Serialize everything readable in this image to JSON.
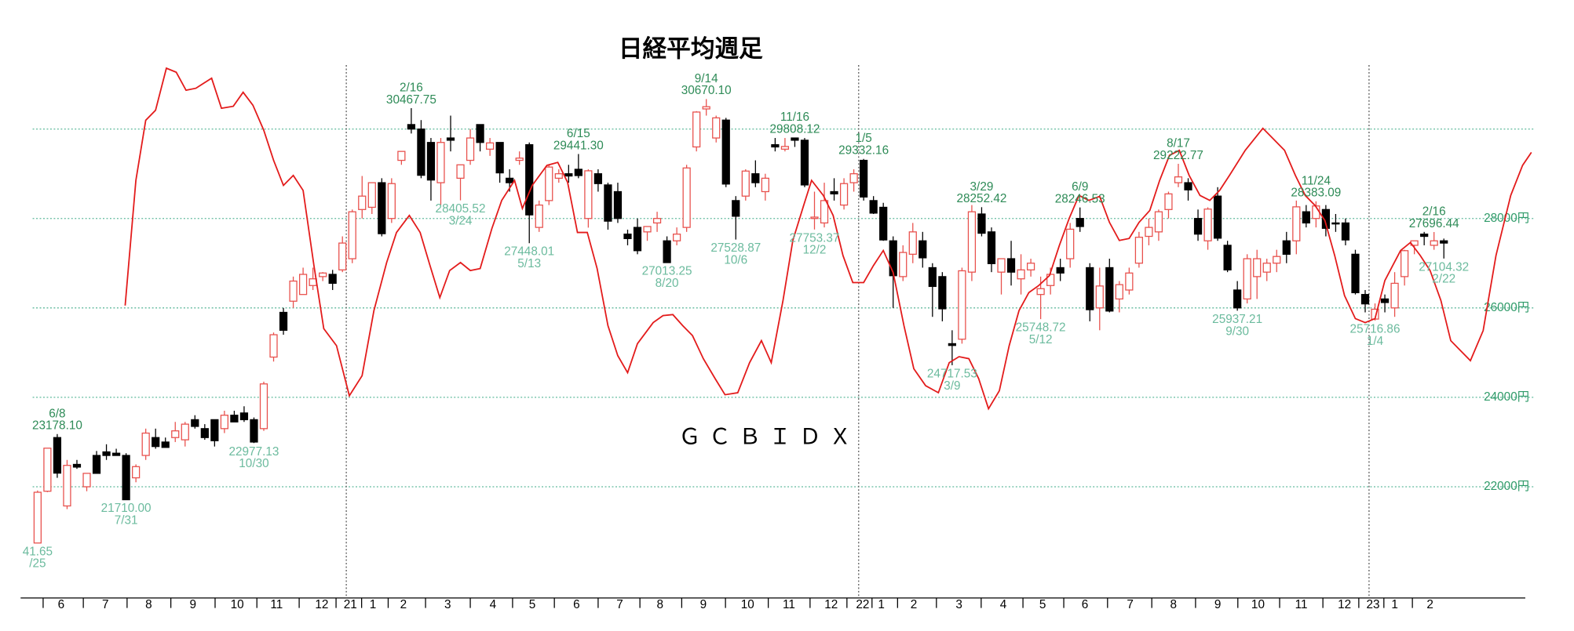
{
  "chart_data": {
    "type": "candlestick",
    "title": "日経平均週足",
    "x": [
      0,
      1,
      2,
      3,
      4,
      5,
      6,
      7,
      8,
      9,
      10,
      11,
      12,
      13,
      14,
      15,
      16,
      17,
      18,
      19,
      20,
      21,
      22,
      23,
      24,
      25,
      26,
      27,
      28,
      29,
      30,
      31,
      32,
      33,
      34,
      35,
      36,
      37,
      38,
      39,
      40,
      41,
      42,
      43,
      44,
      45,
      46,
      47,
      48,
      49,
      50,
      51,
      52,
      53,
      54,
      55,
      56,
      57,
      58,
      59,
      60,
      61,
      62,
      63,
      64,
      65,
      66,
      67,
      68,
      69,
      70,
      71,
      72,
      73,
      74,
      75,
      76,
      77,
      78,
      79,
      80,
      81,
      82,
      83,
      84,
      85,
      86,
      87,
      88,
      89,
      90,
      91,
      92,
      93,
      94,
      95,
      96,
      97,
      98,
      99,
      100,
      101,
      102,
      103,
      104,
      105,
      106,
      107,
      108,
      109,
      110,
      111,
      112,
      113,
      114,
      115,
      116,
      117,
      118,
      119,
      120,
      121,
      122,
      123,
      124,
      125,
      126,
      127,
      128,
      129,
      130,
      131,
      132,
      133,
      134,
      135,
      136,
      137,
      138,
      139,
      140,
      141,
      142,
      143
    ],
    "open": [
      20741.65,
      21900,
      23100,
      21571,
      22500,
      22000,
      22700,
      22780,
      22750,
      22700,
      22200,
      22700,
      23100,
      23000,
      23100,
      23050,
      23500,
      23300,
      23500,
      23300,
      23600,
      23650,
      23500,
      23300,
      24900,
      25900,
      26150,
      26300,
      26500,
      26700,
      26750,
      26850,
      27100,
      28200,
      28250,
      28800,
      28000,
      29300,
      30100,
      30000,
      29700,
      28800,
      29800,
      28900,
      29300,
      30100,
      29550,
      29700,
      28900,
      29300,
      29650,
      27800,
      28400,
      28900,
      29000,
      29100,
      28000,
      29000,
      28750,
      28600,
      27650,
      27800,
      27700,
      27900,
      27500,
      27500,
      27800,
      29600,
      30450,
      29800,
      30200,
      28400,
      28500,
      29000,
      28600,
      29650,
      29550,
      29800,
      29750,
      28000,
      27900,
      28600,
      28300,
      28800,
      29300,
      28400,
      28250,
      27500,
      26700,
      27200,
      27500,
      26900,
      26700,
      25200,
      25300,
      26800,
      28100,
      27700,
      26800,
      27100,
      26650,
      26850,
      26300,
      26500,
      26900,
      27100,
      28000,
      26900,
      26000,
      26900,
      26200,
      26400,
      27000,
      27600,
      27700,
      28200,
      28800,
      28800,
      28000,
      27500,
      28500,
      27400,
      26400,
      26200,
      26700,
      26800,
      27000,
      27500,
      27500,
      28150,
      28000,
      28200,
      27900,
      27900,
      27200,
      26300,
      25750,
      26200,
      26000,
      26700,
      27400,
      27650,
      27400,
      27500
    ],
    "high": [
      21916,
      22863,
      23178.1,
      22600,
      22600,
      22300,
      22800,
      22950,
      22850,
      22750,
      22500,
      23300,
      23300,
      23100,
      23450,
      23450,
      23600,
      23400,
      23500,
      23700,
      23700,
      23800,
      23550,
      24350,
      25450,
      26000,
      26700,
      26900,
      26900,
      26800,
      26850,
      27600,
      28200,
      28950,
      28800,
      28900,
      28900,
      29500,
      30467.75,
      30200,
      29800,
      29800,
      30300,
      29200,
      30000,
      30100,
      29800,
      29700,
      29100,
      29500,
      29700,
      28400,
      29200,
      29100,
      29200,
      29441.3,
      29100,
      29100,
      28800,
      28800,
      27750,
      28000,
      27800,
      28150,
      27600,
      27800,
      29200,
      30400,
      30670.1,
      30300,
      30250,
      28500,
      29100,
      29300,
      29000,
      29800,
      29800,
      29808.12,
      29800,
      28600,
      28800,
      28900,
      28900,
      29100,
      29332.16,
      28500,
      28350,
      27600,
      27400,
      27900,
      27700,
      27000,
      26800,
      25500,
      26900,
      28300,
      28252.42,
      27800,
      27100,
      27500,
      27200,
      27100,
      26700,
      26900,
      27100,
      27900,
      28246.53,
      27000,
      26900,
      27100,
      26600,
      26900,
      27700,
      28000,
      28200,
      28600,
      29222.77,
      28900,
      28200,
      28250,
      28700,
      27500,
      26600,
      27200,
      27300,
      27100,
      27300,
      27700,
      28400,
      28300,
      28383.09,
      28300,
      28100,
      28000,
      27300,
      26400,
      26100,
      26300,
      26800,
      27300,
      27500,
      27700,
      27696.44,
      27550
    ],
    "low": [
      20741.65,
      21880,
      22200,
      21500,
      22400,
      21900,
      22300,
      22600,
      22700,
      21710,
      22100,
      22600,
      22850,
      22880,
      23000,
      22900,
      23300,
      23050,
      22900,
      23200,
      23450,
      23450,
      22977.13,
      23250,
      24800,
      25400,
      26000,
      26300,
      26400,
      26600,
      26400,
      26800,
      27000,
      28000,
      28100,
      27600,
      27900,
      29200,
      29900,
      28900,
      28400,
      28300,
      29500,
      28405.52,
      29200,
      29500,
      29400,
      28800,
      28600,
      29200,
      27448.01,
      27700,
      28300,
      28800,
      28800,
      28900,
      27795,
      28600,
      27750,
      27900,
      27400,
      27200,
      27500,
      27700,
      27013.25,
      27400,
      27700,
      29500,
      30300,
      29700,
      28700,
      27528.87,
      28400,
      28700,
      28400,
      29500,
      29500,
      29600,
      28700,
      27753.37,
      27800,
      28400,
      28200,
      28600,
      28400,
      28100,
      27500,
      26000,
      26600,
      27000,
      26900,
      25800,
      25700,
      24717.53,
      25200,
      26600,
      27600,
      26800,
      26300,
      26500,
      26300,
      26700,
      25748.72,
      26300,
      26600,
      26900,
      27700,
      25700,
      25500,
      25900,
      25900,
      26300,
      26900,
      27400,
      27500,
      28000,
      28700,
      28400,
      27500,
      27300,
      27500,
      26800,
      25937.21,
      26100,
      26200,
      26600,
      26800,
      27000,
      27200,
      27800,
      27800,
      27600,
      27700,
      27400,
      26300,
      25900,
      25716.86,
      25900,
      25800,
      26500,
      27200,
      27400,
      27300,
      27104.32
    ],
    "close": [
      21877,
      22863,
      22305,
      22478,
      22440,
      22300,
      22300,
      22700,
      22700,
      21710,
      22450,
      23200,
      22900,
      22880,
      23250,
      23400,
      23350,
      23100,
      23030,
      23600,
      23450,
      23500,
      23000,
      24300,
      25400,
      25500,
      26600,
      26750,
      26650,
      26780,
      26550,
      27450,
      28150,
      28500,
      28800,
      27660,
      28780,
      29500,
      30000,
      28966,
      28860,
      29700,
      29750,
      29200,
      29800,
      29700,
      29690,
      29020,
      28800,
      29350,
      28080,
      28300,
      29150,
      29000,
      28950,
      28960,
      29066,
      28780,
      27940,
      28000,
      27550,
      27280,
      27820,
      28000,
      27013.25,
      27650,
      29130,
      30380,
      30500,
      30250,
      28770,
      28050,
      29060,
      28800,
      28900,
      29600,
      29610,
      29750,
      28750,
      28030,
      28400,
      28550,
      28780,
      29000,
      28480,
      28120,
      27520,
      26720,
      27240,
      27700,
      27120,
      26480,
      25980,
      25160,
      26830,
      28150,
      27670,
      26990,
      27100,
      26800,
      26850,
      27000,
      26430,
      26750,
      26780,
      27760,
      27820,
      25960,
      26490,
      25930,
      26520,
      26780,
      27580,
      27800,
      28150,
      28550,
      28930,
      28640,
      27650,
      28210,
      27560,
      26850,
      26000,
      27100,
      27100,
      27000,
      27150,
      27200,
      28260,
      27900,
      28280,
      27780,
      27880,
      27520,
      26340,
      26090,
      25970,
      26120,
      26550,
      27280,
      27500,
      27600,
      27500,
      27450
    ],
    "up_color": "#e8504c",
    "down_color": "#000000",
    "overlay": {
      "type": "line",
      "name": "ＧＣＢＩＤＸ",
      "color": "#e31b1b",
      "x": [
        8.9,
        10.0,
        11.0,
        12.0,
        13.1,
        14.1,
        15.1,
        16.1,
        17.7,
        18.7,
        19.9,
        20.9,
        21.9,
        23.0,
        24.0,
        25.0,
        26.0,
        27.0,
        28.1,
        29.1,
        30.4,
        31.7,
        33.0,
        34.2,
        35.5,
        36.5,
        37.8,
        38.9,
        39.9,
        40.9,
        41.9,
        43.0,
        44.0,
        45.0,
        46.2,
        47.2,
        48.5,
        49.3,
        50.3,
        51.8,
        52.9,
        53.9,
        54.9,
        55.9,
        56.9,
        58.0,
        59.0,
        60.0,
        61.0,
        62.6,
        63.6,
        64.6,
        65.6,
        66.6,
        67.7,
        68.9,
        69.9,
        71.2,
        72.4,
        73.6,
        74.6,
        75.8,
        76.8,
        77.9,
        78.7,
        79.9,
        80.9,
        81.9,
        82.9,
        84.0,
        85.0,
        86.0,
        87.0,
        88.1,
        89.1,
        90.3,
        91.6,
        92.7,
        93.7,
        94.7,
        95.7,
        96.7,
        97.8,
        98.8,
        99.8,
        100.8,
        101.8,
        102.9,
        103.9,
        104.9,
        105.9,
        106.9,
        108.0,
        109.0,
        110.0,
        111.0,
        112.0,
        113.1,
        114.1,
        115.1,
        116.1,
        117.1,
        118.2,
        119.2,
        120.2,
        121.2,
        122.8,
        124.6,
        125.8,
        126.8,
        127.9,
        128.9,
        129.9,
        130.9,
        131.9,
        132.9,
        134.0,
        135.0,
        136.0,
        137.0,
        138.6,
        139.6,
        140.6,
        141.6,
        142.7,
        143.7,
        144.7,
        145.7,
        147.0,
        148.3,
        149.8,
        151.0,
        151.9
      ],
      "values": [
        26051,
        28851,
        30195,
        30419,
        31360,
        31270,
        30867,
        30912,
        31136,
        30464,
        30509,
        30822,
        30531,
        29971,
        29299,
        28739,
        28963,
        28627,
        26947,
        25536,
        25155,
        24035,
        24483,
        25939,
        27014,
        27686,
        28067,
        27686,
        26947,
        26230,
        26835,
        27014,
        26835,
        26880,
        27776,
        28403,
        28851,
        28224,
        28739,
        29187,
        29254,
        28806,
        27686,
        27686,
        26880,
        25603,
        24931,
        24550,
        25200,
        25670,
        25827,
        25850,
        25603,
        25379,
        24864,
        24416,
        24058,
        24102,
        24774,
        25267,
        24774,
        26163,
        27507,
        28291,
        28851,
        28515,
        28067,
        27171,
        26566,
        26566,
        26947,
        27283,
        26790,
        25603,
        24640,
        24259,
        24102,
        24774,
        24909,
        24864,
        24416,
        23744,
        24147,
        25155,
        25939,
        26342,
        26499,
        26723,
        27395,
        28000,
        28515,
        28403,
        28493,
        27910,
        27507,
        27552,
        27910,
        28179,
        28851,
        29411,
        29523,
        28963,
        28515,
        28403,
        28627,
        28963,
        29523,
        30016,
        29747,
        29523,
        28963,
        28515,
        28291,
        27955,
        27171,
        26275,
        25760,
        25670,
        25760,
        26611,
        27283,
        27462,
        27171,
        26835,
        26163,
        25267,
        25043,
        24819,
        25491,
        27171,
        28515,
        29187,
        29478
      ]
    },
    "xlim": [
      -0.5,
      152.3
    ],
    "xticks": [
      {
        "value": 2.4,
        "label": "6"
      },
      {
        "value": 6.9,
        "label": "7"
      },
      {
        "value": 11.3,
        "label": "8"
      },
      {
        "value": 15.8,
        "label": "9"
      },
      {
        "value": 20.3,
        "label": "10"
      },
      {
        "value": 24.3,
        "label": "11"
      },
      {
        "value": 28.9,
        "label": "12"
      },
      {
        "value": 31.8,
        "label": "21",
        "grid": true
      },
      {
        "value": 34.1,
        "label": "1"
      },
      {
        "value": 37.2,
        "label": "2"
      },
      {
        "value": 41.7,
        "label": "3"
      },
      {
        "value": 46.3,
        "label": "4"
      },
      {
        "value": 50.3,
        "label": "5"
      },
      {
        "value": 54.8,
        "label": "6"
      },
      {
        "value": 59.2,
        "label": "7"
      },
      {
        "value": 63.3,
        "label": "8"
      },
      {
        "value": 67.7,
        "label": "9"
      },
      {
        "value": 72.2,
        "label": "10"
      },
      {
        "value": 76.4,
        "label": "11"
      },
      {
        "value": 80.7,
        "label": "12"
      },
      {
        "value": 83.9,
        "label": "22",
        "grid": true
      },
      {
        "value": 85.8,
        "label": "1"
      },
      {
        "value": 89.1,
        "label": "2"
      },
      {
        "value": 93.7,
        "label": "3"
      },
      {
        "value": 98.2,
        "label": "4"
      },
      {
        "value": 102.2,
        "label": "5"
      },
      {
        "value": 106.5,
        "label": "6"
      },
      {
        "value": 111.1,
        "label": "7"
      },
      {
        "value": 115.5,
        "label": "8"
      },
      {
        "value": 120.0,
        "label": "9"
      },
      {
        "value": 124.1,
        "label": "10"
      },
      {
        "value": 128.5,
        "label": "11"
      },
      {
        "value": 132.9,
        "label": "12"
      },
      {
        "value": 135.8,
        "label": "23",
        "grid": true
      },
      {
        "value": 138.0,
        "label": "1"
      },
      {
        "value": 141.6,
        "label": "2"
      }
    ],
    "ylim": [
      19670,
      31430
    ],
    "yticks": [
      {
        "value": 22000,
        "label": "22000円"
      },
      {
        "value": 24000,
        "label": "24000円"
      },
      {
        "value": 26000,
        "label": "26000円"
      },
      {
        "value": 28000,
        "label": "28000円"
      }
    ],
    "extra_grid": [
      30000
    ],
    "grid_color": "#5cb89a",
    "axis_label_color": "#2e9a68",
    "high_label_color": "#2e8b57",
    "low_label_color": "#6cbb9e",
    "annotations": [
      {
        "week": 0,
        "kind": "low",
        "lines": [
          "41.65",
          "/25"
        ]
      },
      {
        "week": 2,
        "kind": "high",
        "lines": [
          "6/8",
          "23178.10"
        ]
      },
      {
        "week": 9,
        "kind": "low",
        "lines": [
          "21710.00",
          "7/31"
        ]
      },
      {
        "week": 22,
        "kind": "low",
        "lines": [
          "22977.13",
          "10/30"
        ]
      },
      {
        "week": 38,
        "kind": "high",
        "lines": [
          "2/16",
          "30467.75"
        ]
      },
      {
        "week": 43,
        "kind": "low",
        "lines": [
          "28405.52",
          "3/24"
        ]
      },
      {
        "week": 50,
        "kind": "low",
        "lines": [
          "27448.01",
          "5/13"
        ]
      },
      {
        "week": 55,
        "kind": "high",
        "lines": [
          "6/15",
          "29441.30"
        ]
      },
      {
        "week": 64,
        "kind": "low",
        "lines": [
          "27013.25",
          "8/20"
        ]
      },
      {
        "week": 68,
        "kind": "high",
        "lines": [
          "9/14",
          "30670.10"
        ]
      },
      {
        "week": 71,
        "kind": "low",
        "lines": [
          "27528.87",
          "10/6"
        ]
      },
      {
        "week": 77,
        "kind": "high",
        "lines": [
          "11/16",
          "29808.12"
        ]
      },
      {
        "week": 79,
        "kind": "low",
        "lines": [
          "27753.37",
          "12/2"
        ]
      },
      {
        "week": 84,
        "kind": "high",
        "lines": [
          "1/5",
          "29332.16"
        ]
      },
      {
        "week": 93,
        "kind": "low",
        "lines": [
          "24717.53",
          "3/9"
        ]
      },
      {
        "week": 96,
        "kind": "high",
        "lines": [
          "3/29",
          "28252.42"
        ]
      },
      {
        "week": 102,
        "kind": "low",
        "lines": [
          "25748.72",
          "5/12"
        ]
      },
      {
        "week": 106,
        "kind": "high",
        "lines": [
          "6/9",
          "28246.53"
        ]
      },
      {
        "week": 116,
        "kind": "high",
        "lines": [
          "8/17",
          "29222.77"
        ]
      },
      {
        "week": 122,
        "kind": "low",
        "lines": [
          "25937.21",
          "9/30"
        ]
      },
      {
        "week": 130,
        "kind": "high",
        "lines": [
          "11/24",
          "28383.09"
        ]
      },
      {
        "week": 136,
        "kind": "low",
        "lines": [
          "25716.86",
          "1/4"
        ]
      },
      {
        "week": 142,
        "kind": "high",
        "lines": [
          "2/16",
          "27696.44"
        ]
      },
      {
        "week": 143,
        "kind": "low",
        "lines": [
          "27104.32",
          "2/22"
        ]
      }
    ]
  }
}
